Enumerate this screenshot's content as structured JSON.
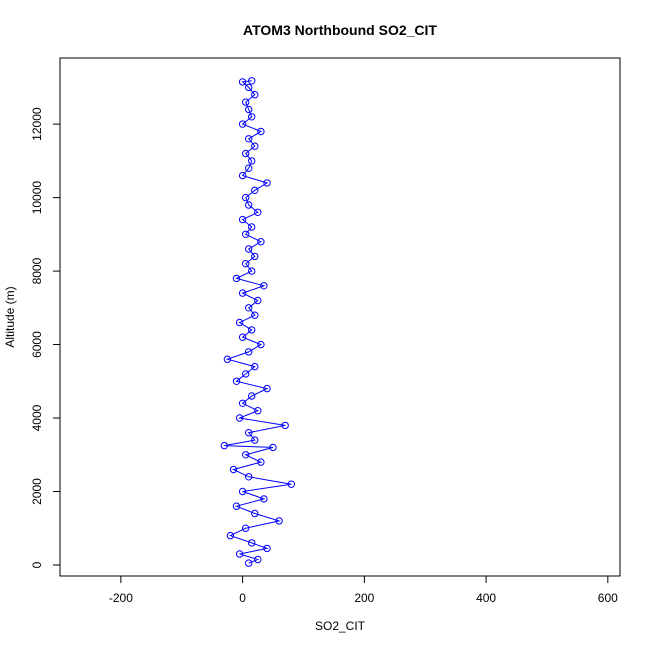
{
  "chart_data": {
    "type": "scatter",
    "title": "ATOM3 Northbound SO2_CIT",
    "xlabel": "SO2_CIT",
    "ylabel": "Altitude (m)",
    "xlim": [
      -300,
      620
    ],
    "ylim": [
      -300,
      13800
    ],
    "x_ticks": [
      -200,
      0,
      200,
      400,
      600
    ],
    "y_ticks": [
      0,
      2000,
      4000,
      6000,
      8000,
      10000,
      12000
    ],
    "x_tick_labels": [
      "-200",
      "0",
      "200",
      "400",
      "600"
    ],
    "y_tick_labels": [
      "0",
      "2000",
      "4000",
      "6000",
      "8000",
      "10000",
      "12000"
    ],
    "grid": false,
    "legend": "none",
    "style": "points and lines",
    "series": [
      {
        "color": "#0000ff",
        "x": [
          10,
          25,
          -5,
          40,
          15,
          -20,
          5,
          60,
          20,
          -10,
          35,
          0,
          80,
          10,
          -15,
          30,
          5,
          50,
          -30,
          20,
          10,
          70,
          -5,
          25,
          0,
          15,
          40,
          -10,
          5,
          20,
          -25,
          10,
          30,
          0,
          15,
          -5,
          20,
          10,
          25,
          0,
          35,
          -10,
          15,
          5,
          20,
          10,
          30,
          5,
          15,
          0,
          25,
          10,
          5,
          20,
          40,
          0,
          10,
          15,
          5,
          20,
          10,
          30,
          0,
          15,
          10,
          5,
          20,
          10,
          0,
          15
        ],
        "y": [
          50,
          150,
          300,
          450,
          600,
          800,
          1000,
          1200,
          1400,
          1600,
          1800,
          2000,
          2200,
          2400,
          2600,
          2800,
          3000,
          3200,
          3250,
          3400,
          3600,
          3800,
          4000,
          4200,
          4400,
          4600,
          4800,
          5000,
          5200,
          5400,
          5600,
          5800,
          6000,
          6200,
          6400,
          6600,
          6800,
          7000,
          7200,
          7400,
          7600,
          7800,
          8000,
          8200,
          8400,
          8600,
          8800,
          9000,
          9200,
          9400,
          9600,
          9800,
          10000,
          10200,
          10400,
          10600,
          10800,
          11000,
          11200,
          11400,
          11600,
          11800,
          12000,
          12200,
          12400,
          12600,
          12800,
          13000,
          13150,
          13180
        ]
      }
    ]
  }
}
